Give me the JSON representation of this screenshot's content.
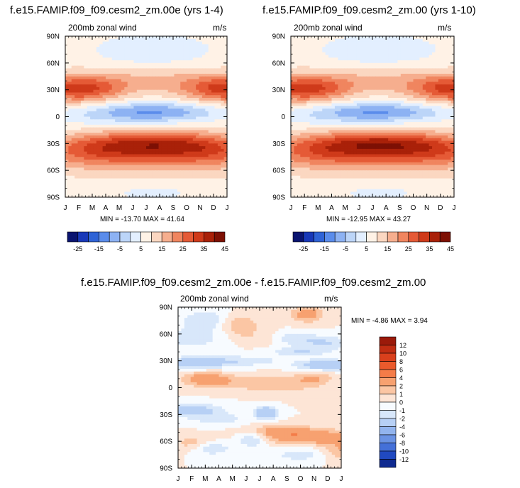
{
  "chart_data": [
    {
      "type": "heatmap",
      "title": "f.e15.FAMIP.f09_f09.cesm2_zm.00e (yrs 1-4)",
      "left_label": "200mb zonal wind",
      "right_label": "m/s",
      "x_ticks": [
        "J",
        "F",
        "M",
        "A",
        "M",
        "J",
        "J",
        "A",
        "S",
        "O",
        "N",
        "D",
        "J"
      ],
      "y_ticks": [
        "90N",
        "60N",
        "30N",
        "0",
        "30S",
        "60S",
        "90S"
      ],
      "ylim": [
        -90,
        90
      ],
      "stats": "MIN = -13.70 MAX =  41.64",
      "colorbar_labels": [
        "-25",
        "-15",
        "-5",
        "5",
        "15",
        "25",
        "35",
        "45"
      ],
      "colorbar_colors": [
        "#0a1470",
        "#1838b8",
        "#2f63d6",
        "#5a8ceb",
        "#8db2f3",
        "#bcd5f8",
        "#e3efff",
        "#fff2e6",
        "#fbd7c1",
        "#f6ae8e",
        "#f0855f",
        "#e55a36",
        "#cf3a1a",
        "#a92109",
        "#7d1004"
      ]
    },
    {
      "type": "heatmap",
      "title": "f.e15.FAMIP.f09_f09.cesm2_zm.00 (yrs 1-10)",
      "left_label": "200mb zonal wind",
      "right_label": "m/s",
      "x_ticks": [
        "J",
        "F",
        "M",
        "A",
        "M",
        "J",
        "J",
        "A",
        "S",
        "O",
        "N",
        "D",
        "J"
      ],
      "y_ticks": [
        "90N",
        "60N",
        "30N",
        "0",
        "30S",
        "60S",
        "90S"
      ],
      "ylim": [
        -90,
        90
      ],
      "stats": "MIN = -12.95 MAX =  43.27",
      "colorbar_labels": [
        "-25",
        "-15",
        "-5",
        "5",
        "15",
        "25",
        "35",
        "45"
      ],
      "colorbar_colors": [
        "#0a1470",
        "#1838b8",
        "#2f63d6",
        "#5a8ceb",
        "#8db2f3",
        "#bcd5f8",
        "#e3efff",
        "#fff2e6",
        "#fbd7c1",
        "#f6ae8e",
        "#f0855f",
        "#e55a36",
        "#cf3a1a",
        "#a92109",
        "#7d1004"
      ]
    },
    {
      "type": "heatmap",
      "title": "f.e15.FAMIP.f09_f09.cesm2_zm.00e - f.e15.FAMIP.f09_f09.cesm2_zm.00",
      "left_label": "200mb zonal wind",
      "right_label": "m/s",
      "x_ticks": [
        "J",
        "F",
        "M",
        "A",
        "M",
        "J",
        "J",
        "A",
        "S",
        "O",
        "N",
        "D",
        "J"
      ],
      "y_ticks": [
        "90N",
        "60N",
        "30N",
        "0",
        "30S",
        "60S",
        "90S"
      ],
      "ylim": [
        -90,
        90
      ],
      "stats": "MIN =  -4.86 MAX =   3.94",
      "colorbar_labels": [
        "12",
        "10",
        "8",
        "6",
        "4",
        "2",
        "1",
        "0",
        "-1",
        "-2",
        "-4",
        "-6",
        "-8",
        "-10",
        "-12"
      ],
      "colorbar_colors": [
        "#9b1a0a",
        "#c02d12",
        "#d9401c",
        "#ea5a2c",
        "#f47c48",
        "#f7a170",
        "#fbc6a4",
        "#fde5d6",
        "#f7fbff",
        "#d8e7fa",
        "#b7d0f5",
        "#92b4ee",
        "#6b93e4",
        "#4470d8",
        "#2049c0",
        "#0f2a90"
      ]
    }
  ]
}
